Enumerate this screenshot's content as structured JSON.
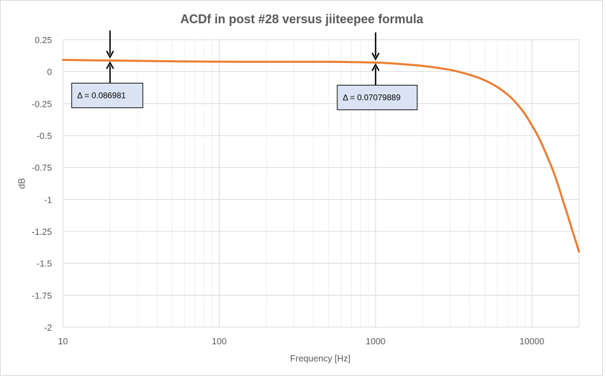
{
  "chart_data": {
    "type": "line",
    "title": "ACDf in post #28 versus jiiteepee formula",
    "xlabel": "Frequency [Hz]",
    "ylabel": "dB",
    "x_scale": "log",
    "xlim": [
      10,
      20000
    ],
    "ylim": [
      -2,
      0.25
    ],
    "x_ticks": [
      10,
      100,
      1000,
      10000
    ],
    "x_tick_labels": [
      "10",
      "100",
      "1000",
      "10000"
    ],
    "y_ticks": [
      0.25,
      0,
      -0.25,
      -0.5,
      -0.75,
      -1,
      -1.25,
      -1.5,
      -1.75,
      -2
    ],
    "y_tick_labels": [
      "0.25",
      "0",
      "-0.25",
      "-0.5",
      "-0.75",
      "-1",
      "-1.25",
      "-1.5",
      "-1.75",
      "-2"
    ],
    "grid": "major and minor, log x",
    "line_color": "#ED7D31",
    "series": [
      {
        "x": [
          10,
          20,
          50,
          100,
          200,
          500,
          1000,
          1500,
          2000,
          3000,
          4000,
          5000,
          6000,
          7000,
          8000,
          9000,
          10000,
          11000,
          12000,
          13000,
          14000,
          15000,
          16000,
          17000,
          18000,
          19000,
          20000
        ],
        "values": [
          0.092,
          0.087,
          0.081,
          0.078,
          0.077,
          0.077,
          0.071,
          0.058,
          0.045,
          0.014,
          -0.025,
          -0.068,
          -0.12,
          -0.18,
          -0.25,
          -0.33,
          -0.42,
          -0.51,
          -0.61,
          -0.71,
          -0.81,
          -0.92,
          -1.03,
          -1.13,
          -1.23,
          -1.32,
          -1.41
        ]
      }
    ],
    "annotations": [
      {
        "x": 20,
        "y": 0.087,
        "label": "Δ = 0.086981"
      },
      {
        "x": 1000,
        "y": 0.071,
        "label": "Δ = 0.07079889"
      }
    ]
  }
}
